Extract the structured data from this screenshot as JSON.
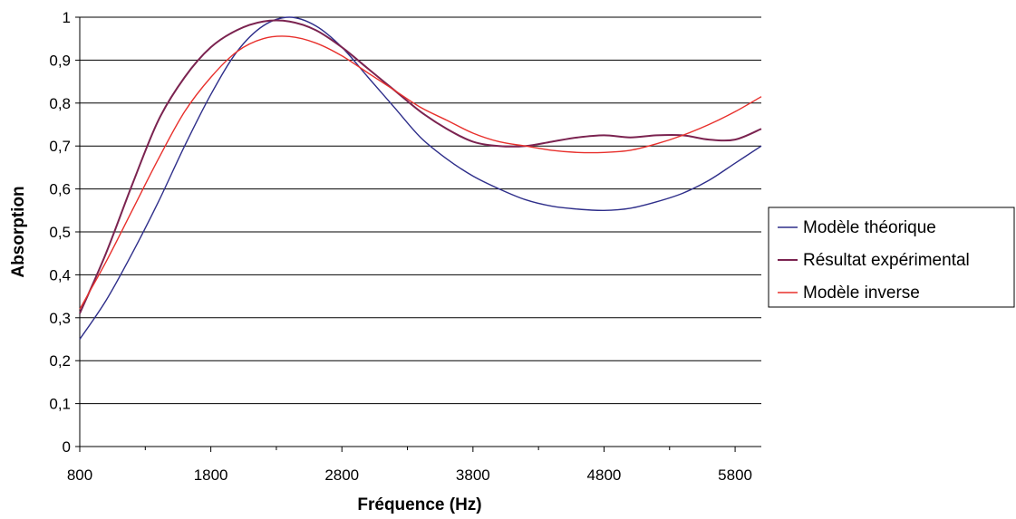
{
  "chart_data": {
    "type": "line",
    "title": "",
    "xlabel": "Fréquence (Hz)",
    "ylabel": "Absorption",
    "xlim": [
      800,
      6000
    ],
    "ylim": [
      0,
      1
    ],
    "x_ticks": [
      800,
      1800,
      2800,
      3800,
      4800,
      5800
    ],
    "x_tick_labels": [
      "800",
      "1800",
      "2800",
      "3800",
      "4800",
      "5800"
    ],
    "y_ticks": [
      0,
      0.1,
      0.2,
      0.3,
      0.4,
      0.5,
      0.6,
      0.7,
      0.8,
      0.9,
      1
    ],
    "y_tick_labels": [
      "0",
      "0,1",
      "0,2",
      "0,3",
      "0,4",
      "0,5",
      "0,6",
      "0,7",
      "0,8",
      "0,9",
      "1"
    ],
    "grid": "horizontal",
    "legend_position": "right",
    "series": [
      {
        "name": "Modèle théorique",
        "color": "#2e2e8a",
        "x": [
          800,
          1000,
          1200,
          1400,
          1600,
          1800,
          2000,
          2200,
          2400,
          2600,
          2800,
          3000,
          3200,
          3400,
          3600,
          3800,
          4000,
          4200,
          4400,
          4600,
          4800,
          5000,
          5200,
          5400,
          5600,
          5800,
          6000
        ],
        "y": [
          0.25,
          0.34,
          0.45,
          0.57,
          0.7,
          0.82,
          0.92,
          0.98,
          1.0,
          0.98,
          0.93,
          0.86,
          0.79,
          0.72,
          0.67,
          0.63,
          0.6,
          0.575,
          0.56,
          0.553,
          0.55,
          0.555,
          0.57,
          0.59,
          0.62,
          0.66,
          0.7
        ]
      },
      {
        "name": "Résultat expérimental",
        "color": "#7b2350",
        "x": [
          800,
          1000,
          1200,
          1400,
          1600,
          1800,
          2000,
          2200,
          2400,
          2600,
          2800,
          3000,
          3200,
          3400,
          3600,
          3800,
          4000,
          4200,
          4400,
          4600,
          4800,
          5000,
          5200,
          5400,
          5600,
          5800,
          6000
        ],
        "y": [
          0.31,
          0.45,
          0.61,
          0.76,
          0.86,
          0.93,
          0.97,
          0.99,
          0.99,
          0.97,
          0.93,
          0.88,
          0.83,
          0.78,
          0.74,
          0.71,
          0.7,
          0.7,
          0.71,
          0.72,
          0.725,
          0.72,
          0.725,
          0.725,
          0.715,
          0.715,
          0.74
        ]
      },
      {
        "name": "Modèle inverse",
        "color": "#e8302c",
        "x": [
          800,
          1000,
          1200,
          1400,
          1600,
          1800,
          2000,
          2200,
          2400,
          2600,
          2800,
          3000,
          3200,
          3400,
          3600,
          3800,
          4000,
          4200,
          4400,
          4600,
          4800,
          5000,
          5200,
          5400,
          5600,
          5800,
          6000
        ],
        "y": [
          0.32,
          0.43,
          0.55,
          0.67,
          0.78,
          0.86,
          0.92,
          0.95,
          0.955,
          0.94,
          0.91,
          0.87,
          0.83,
          0.79,
          0.76,
          0.73,
          0.71,
          0.7,
          0.69,
          0.685,
          0.685,
          0.69,
          0.705,
          0.725,
          0.75,
          0.78,
          0.815
        ]
      }
    ]
  }
}
